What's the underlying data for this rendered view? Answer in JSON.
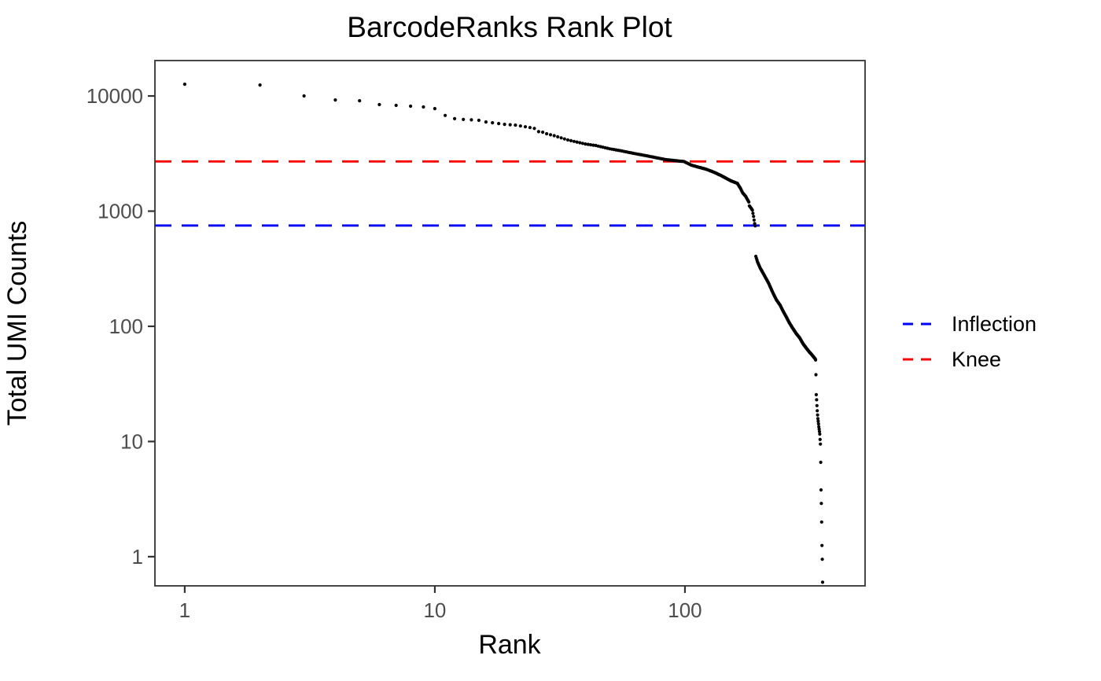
{
  "page": {
    "background_color": "#ffffff"
  },
  "chart_data": {
    "type": "scatter",
    "title": "BarcodeRanks Rank Plot",
    "xlabel": "Rank",
    "ylabel": "Total UMI Counts",
    "x_scale": "log10",
    "y_scale": "log10",
    "xlim": [
      0.76,
      525
    ],
    "ylim": [
      0.558,
      20300
    ],
    "x_ticks": [
      1,
      10,
      100
    ],
    "y_ticks": [
      1,
      10,
      100,
      1000,
      10000
    ],
    "grid": false,
    "legend_position": "right",
    "point_color": "#000000",
    "axis_color": "#333333",
    "tick_text_color": "#4d4d4d",
    "hlines": [
      {
        "label": "Inflection",
        "value": 750,
        "color": "#0000ff",
        "style": "dashed"
      },
      {
        "label": "Knee",
        "value": 2700,
        "color": "#ff0000",
        "style": "dashed"
      }
    ],
    "points": [
      [
        1,
        12650
      ],
      [
        2,
        12450
      ],
      [
        3,
        10000
      ],
      [
        4,
        9230
      ],
      [
        5,
        9090
      ],
      [
        6,
        8420
      ],
      [
        7,
        8290
      ],
      [
        8,
        8160
      ],
      [
        9,
        8030
      ],
      [
        10,
        7770
      ],
      [
        11,
        6770
      ],
      [
        12,
        6350
      ],
      [
        13,
        6250
      ],
      [
        14,
        6200
      ],
      [
        15,
        6150
      ],
      [
        16,
        5950
      ],
      [
        17,
        5850
      ],
      [
        18,
        5760
      ],
      [
        19,
        5670
      ],
      [
        20,
        5630
      ],
      [
        21,
        5580
      ],
      [
        22,
        5490
      ],
      [
        23,
        5400
      ],
      [
        24,
        5320
      ],
      [
        25,
        5230
      ],
      [
        26,
        4900
      ],
      [
        27,
        4850
      ],
      [
        28,
        4700
      ],
      [
        29,
        4600
      ],
      [
        30,
        4520
      ],
      [
        34,
        4150
      ],
      [
        40,
        3830
      ],
      [
        44,
        3715
      ],
      [
        50,
        3480
      ],
      [
        56,
        3330
      ],
      [
        62,
        3180
      ],
      [
        70,
        3030
      ],
      [
        78,
        2890
      ],
      [
        84,
        2800
      ],
      [
        90,
        2755
      ],
      [
        95,
        2720
      ],
      [
        99,
        2700
      ],
      [
        106,
        2510
      ],
      [
        114,
        2400
      ],
      [
        121,
        2320
      ],
      [
        127,
        2230
      ],
      [
        133,
        2140
      ],
      [
        138,
        2060
      ],
      [
        143,
        1980
      ],
      [
        148,
        1900
      ],
      [
        153,
        1830
      ],
      [
        158,
        1780
      ],
      [
        162,
        1745
      ],
      [
        167,
        1565
      ],
      [
        170,
        1445
      ],
      [
        175,
        1340
      ],
      [
        180,
        1200
      ],
      [
        181,
        1110
      ],
      [
        184,
        1060
      ],
      [
        186,
        1020
      ],
      [
        188,
        900
      ],
      [
        190,
        780
      ],
      [
        191,
        745
      ],
      [
        192,
        405
      ],
      [
        195,
        363
      ],
      [
        200,
        320
      ],
      [
        205,
        291
      ],
      [
        211,
        260
      ],
      [
        216,
        237
      ],
      [
        225,
        194
      ],
      [
        232,
        170
      ],
      [
        240,
        153
      ],
      [
        247,
        135
      ],
      [
        254,
        121
      ],
      [
        261,
        108
      ],
      [
        269,
        97
      ],
      [
        278,
        87
      ],
      [
        288,
        79
      ],
      [
        296,
        71
      ],
      [
        305,
        65
      ],
      [
        314,
        60
      ],
      [
        323,
        56
      ],
      [
        332,
        52
      ],
      [
        333,
        51
      ],
      [
        334,
        38
      ],
      [
        335,
        25.5
      ],
      [
        336,
        23
      ],
      [
        337,
        20.5
      ],
      [
        338,
        18.5
      ],
      [
        339,
        17
      ],
      [
        340,
        15.8
      ],
      [
        341,
        15
      ],
      [
        342,
        14.2
      ],
      [
        343,
        13.4
      ],
      [
        344,
        12.8
      ],
      [
        345,
        12.2
      ],
      [
        346,
        11.6
      ],
      [
        347,
        10.4
      ],
      [
        348,
        9.5
      ],
      [
        349,
        6.6
      ],
      [
        350,
        3.8
      ],
      [
        351,
        2.9
      ],
      [
        352,
        2.0
      ],
      [
        353,
        1.25
      ],
      [
        354,
        0.95
      ],
      [
        355,
        0.6
      ]
    ]
  }
}
